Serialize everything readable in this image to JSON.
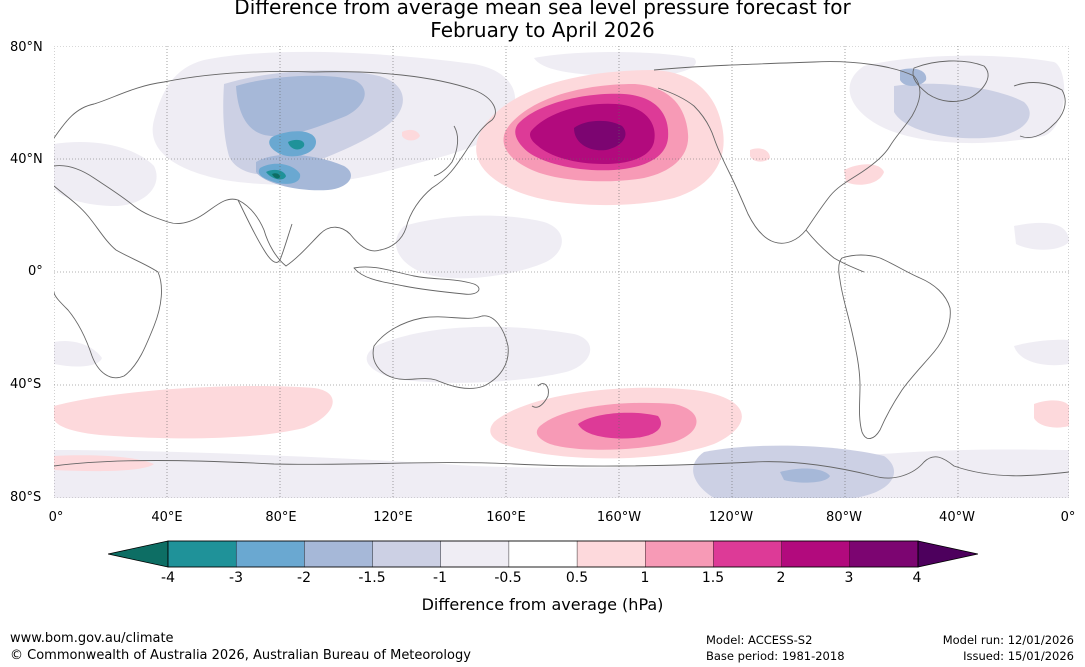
{
  "title_line1": "Difference from average mean sea level pressure forecast for",
  "title_line2": "February to April 2026",
  "lat_labels": [
    "80°N",
    "40°N",
    "0°",
    "40°S",
    "80°S"
  ],
  "lon_labels": [
    "0°",
    "40°E",
    "80°E",
    "120°E",
    "160°E",
    "160°W",
    "120°W",
    "80°W",
    "40°W",
    "0°"
  ],
  "legend": {
    "title": "Difference from average (hPa)",
    "ticks": [
      "-4",
      "-3",
      "-2",
      "-1.5",
      "-1",
      "-0.5",
      "0.5",
      "1",
      "1.5",
      "2",
      "3",
      "4"
    ],
    "colors": [
      "#0d6e64",
      "#1f9299",
      "#6aa8d1",
      "#a6b8d8",
      "#ccd0e4",
      "#efedf4",
      "#ffffff",
      "#fdd9dc",
      "#f79ab6",
      "#dd3a97",
      "#b20a7d",
      "#7c0571",
      "#4d005d"
    ]
  },
  "footer": {
    "website": "www.bom.gov.au/climate",
    "copyright": "© Commonwealth of Australia 2026, Australian Bureau of Meteorology",
    "model": "Model: ACCESS-S2",
    "base_period": "Base period: 1981-2018",
    "model_run": "Model run: 12/01/2026",
    "issued": "Issued: 15/01/2026"
  }
}
